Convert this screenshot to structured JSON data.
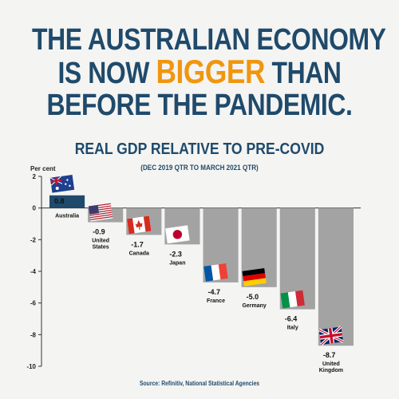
{
  "headline": {
    "line1": "THE AUSTRALIAN ECONOMY",
    "line2_pre": "IS NOW",
    "line2_accent": "BIGGER",
    "line2_post": "THAN",
    "line3": "BEFORE THE PANDEMIC."
  },
  "colors": {
    "headline": "#1f4a6b",
    "accent": "#f0960e",
    "bar_positive": "#1f4a6b",
    "bar_negative": "#a3a3a3",
    "background": "#f4f4f2"
  },
  "source": "Source: Refinitiv, National Statistical Agencies",
  "chart_data": {
    "type": "bar",
    "title": "REAL GDP RELATIVE TO PRE-COVID",
    "subtitle": "(DEC 2019 QTR TO MARCH 2021 QTR)",
    "ylabel": "Per cent",
    "ylim": [
      -10,
      2
    ],
    "yticks": [
      2,
      0,
      -2,
      -4,
      -6,
      -8,
      -10
    ],
    "grid": false,
    "categories": [
      [
        "Australia"
      ],
      [
        "United",
        "States"
      ],
      [
        "Canada"
      ],
      [
        "Japan"
      ],
      [
        "France"
      ],
      [
        "Germany"
      ],
      [
        "Italy"
      ],
      [
        "United",
        "Kingdom"
      ]
    ],
    "values": [
      0.8,
      -0.9,
      -1.7,
      -2.3,
      -4.7,
      -5.0,
      -6.4,
      -8.7
    ],
    "value_labels": [
      "0.8",
      "-0.9",
      "-1.7",
      "-2.3",
      "-4.7",
      "-5.0",
      "-6.4",
      "-8.7"
    ],
    "flags": [
      "australia-flag-icon",
      "usa-flag-icon",
      "canada-flag-icon",
      "japan-flag-icon",
      "france-flag-icon",
      "germany-flag-icon",
      "italy-flag-icon",
      "uk-flag-icon"
    ]
  }
}
